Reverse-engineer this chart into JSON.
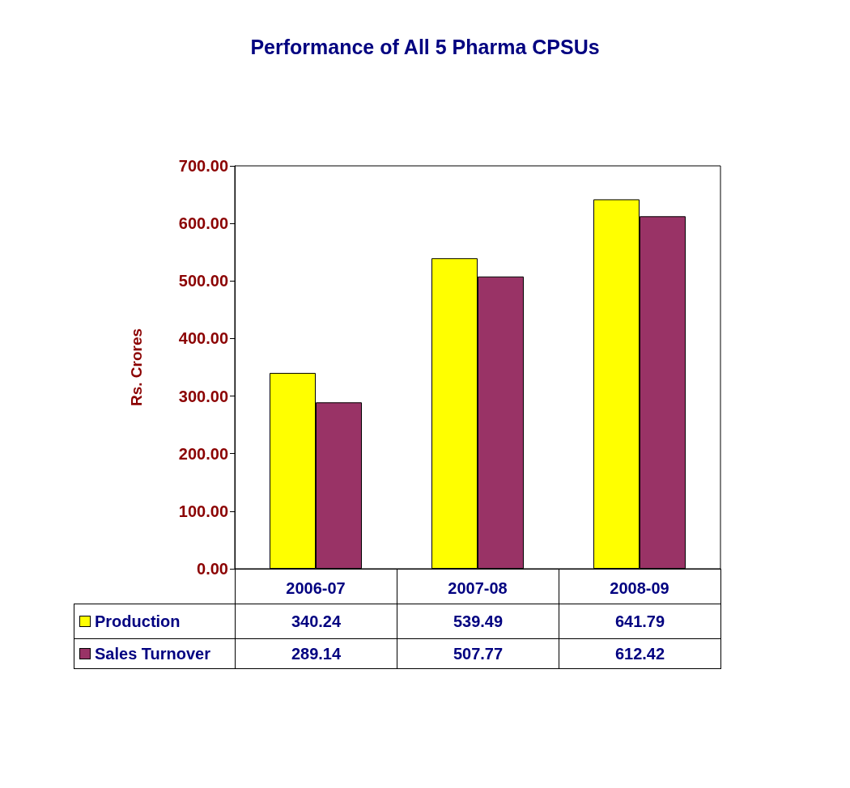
{
  "chart_data": {
    "type": "bar",
    "title": "Performance of All 5 Pharma CPSUs",
    "ylabel": "Rs. Crores",
    "categories": [
      "2006-07",
      "2007-08",
      "2008-09"
    ],
    "series": [
      {
        "name": "Production",
        "color": "#ffff00",
        "values": [
          340.24,
          539.49,
          641.79
        ]
      },
      {
        "name": "Sales Turnover",
        "color": "#993366",
        "values": [
          289.14,
          507.77,
          612.42
        ]
      }
    ],
    "ylim": [
      0,
      700
    ],
    "yticks": [
      {
        "value": 0,
        "label": "0.00"
      },
      {
        "value": 100,
        "label": "100.00"
      },
      {
        "value": 200,
        "label": "200.00"
      },
      {
        "value": 300,
        "label": "300.00"
      },
      {
        "value": 400,
        "label": "400.00"
      },
      {
        "value": 500,
        "label": "500.00"
      },
      {
        "value": 600,
        "label": "600.00"
      },
      {
        "value": 700,
        "label": "700.00"
      }
    ],
    "grid": false,
    "legend": "bottom",
    "data_labels": true
  }
}
